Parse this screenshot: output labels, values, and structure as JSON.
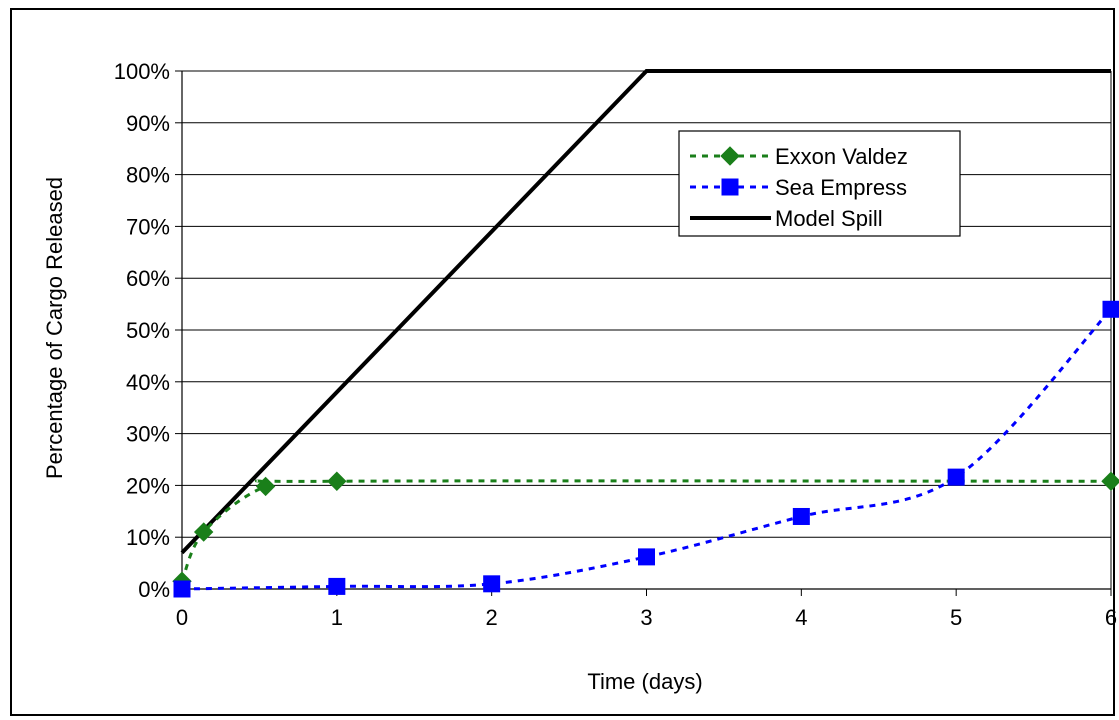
{
  "chart_data": {
    "type": "line",
    "title": "",
    "xlabel": "Time (days)",
    "ylabel": "Percentage of Cargo Released",
    "xlim": [
      0,
      6
    ],
    "ylim": [
      0,
      100
    ],
    "x_ticks": [
      "0",
      "1",
      "2",
      "3",
      "4",
      "5",
      "6"
    ],
    "y_ticks": [
      "0%",
      "10%",
      "20%",
      "30%",
      "40%",
      "50%",
      "60%",
      "70%",
      "80%",
      "90%",
      "100%"
    ],
    "grid": true,
    "legend_position": "top-right",
    "series": [
      {
        "name": "Exxon Valdez",
        "color": "#1a7f1a",
        "line_style": "dashed",
        "marker": "diamond",
        "smooth": true,
        "x": [
          0,
          0.14,
          0.54,
          1,
          6
        ],
        "y": [
          1.5,
          11,
          19.8,
          20.8,
          20.8
        ]
      },
      {
        "name": "Sea Empress",
        "color": "#0000ff",
        "line_style": "dashed",
        "marker": "square",
        "smooth": true,
        "x": [
          0,
          1,
          2,
          3,
          4,
          5,
          6
        ],
        "y": [
          0,
          0.5,
          1,
          6.2,
          14,
          21.6,
          54
        ]
      },
      {
        "name": "Model Spill",
        "color": "#000000",
        "line_style": "solid",
        "marker": "none",
        "smooth": false,
        "x": [
          0,
          3,
          6
        ],
        "y": [
          7,
          100,
          100
        ]
      }
    ]
  }
}
